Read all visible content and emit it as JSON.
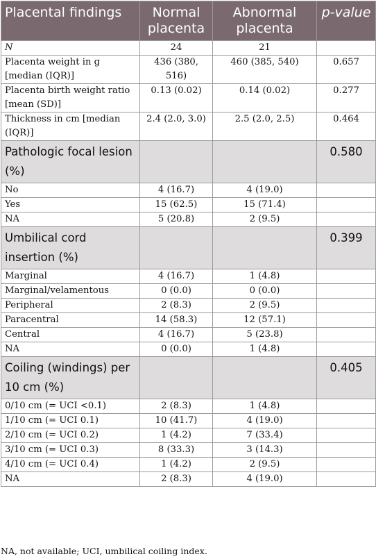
{
  "headers": {
    "findings": "Placental findings",
    "normal": "Normal placenta",
    "abnormal": "Abnormal placenta",
    "pvalue": "p-value"
  },
  "n_row": {
    "label": "N",
    "normal": "24",
    "abnormal": "21",
    "p": ""
  },
  "rows_top": [
    {
      "label": "Placenta weight in g [median (IQR)]",
      "normal": "436 (380, 516)",
      "abnormal": "460 (385, 540)",
      "p": "0.657"
    },
    {
      "label": "Placenta birth weight ratio [mean (SD)]",
      "normal": "0.13 (0.02)",
      "abnormal": "0.14 (0.02)",
      "p": "0.277"
    },
    {
      "label": "Thickness in cm [median (IQR)]",
      "normal": "2.4 (2.0, 3.0)",
      "abnormal": "2.5 (2.0, 2.5)",
      "p": "0.464"
    }
  ],
  "sections": [
    {
      "title": "Pathologic focal lesion (%)",
      "p": "0.580",
      "rows": [
        {
          "label": "No",
          "normal": "4 (16.7)",
          "abnormal": "4 (19.0)"
        },
        {
          "label": "Yes",
          "normal": "15 (62.5)",
          "abnormal": "15 (71.4)"
        },
        {
          "label": "NA",
          "normal": "5 (20.8)",
          "abnormal": "2 (9.5)"
        }
      ]
    },
    {
      "title": "Umbilical cord insertion (%)",
      "p": "0.399",
      "rows": [
        {
          "label": "Marginal",
          "normal": "4 (16.7)",
          "abnormal": "1 (4.8)"
        },
        {
          "label": "Marginal/velamentous",
          "normal": "0 (0.0)",
          "abnormal": "0 (0.0)"
        },
        {
          "label": "Peripheral",
          "normal": "2 (8.3)",
          "abnormal": "2 (9.5)"
        },
        {
          "label": "Paracentral",
          "normal": "14 (58.3)",
          "abnormal": "12 (57.1)"
        },
        {
          "label": "Central",
          "normal": "4 (16.7)",
          "abnormal": "5 (23.8)"
        },
        {
          "label": "NA",
          "normal": "0 (0.0)",
          "abnormal": "1 (4.8)"
        }
      ]
    },
    {
      "title": "Coiling (windings) per 10 cm (%)",
      "p": "0.405",
      "rows": [
        {
          "label": "0/10 cm (= UCI <0.1)",
          "normal": "2 (8.3)",
          "abnormal": "1 (4.8)"
        },
        {
          "label": "1/10 cm (= UCI 0.1)",
          "normal": "10 (41.7)",
          "abnormal": "4 (19.0)"
        },
        {
          "label": "2/10 cm (= UCI 0.2)",
          "normal": "1 (4.2)",
          "abnormal": "7 (33.4)"
        },
        {
          "label": "3/10 cm (= UCI 0.3)",
          "normal": "8 (33.3)",
          "abnormal": "3 (14.3)"
        },
        {
          "label": "4/10 cm (= UCI 0.4)",
          "normal": "1 (4.2)",
          "abnormal": "2 (9.5)"
        },
        {
          "label": "NA",
          "normal": "2 (8.3)",
          "abnormal": "4 (19.0)"
        }
      ]
    }
  ],
  "footnote": "NA, not available; UCI, umbilical coiling index."
}
